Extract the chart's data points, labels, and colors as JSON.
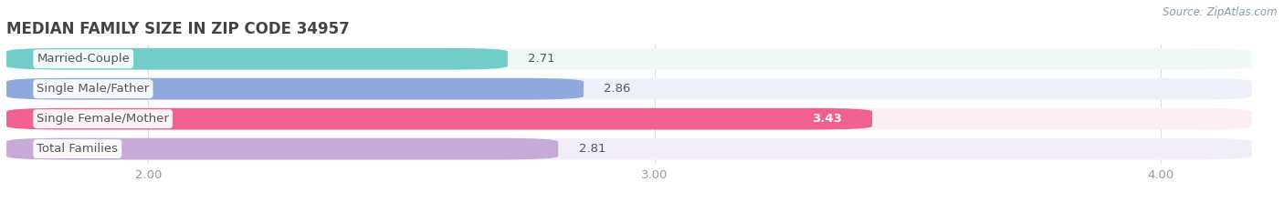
{
  "title": "MEDIAN FAMILY SIZE IN ZIP CODE 34957",
  "source": "Source: ZipAtlas.com",
  "categories": [
    "Married-Couple",
    "Single Male/Father",
    "Single Female/Mother",
    "Total Families"
  ],
  "values": [
    2.71,
    2.86,
    3.43,
    2.81
  ],
  "bar_colors": [
    "#72cdc9",
    "#90aade",
    "#f06090",
    "#c8aad8"
  ],
  "bar_bg_colors": [
    "#eff8f7",
    "#edf0f9",
    "#fceef4",
    "#f2eef8"
  ],
  "row_bg_colors": [
    "#f5f5f5",
    "#f5f5f5",
    "#f5f5f5",
    "#f5f5f5"
  ],
  "xlim_min": 1.72,
  "xlim_max": 4.18,
  "xticks": [
    2.0,
    3.0,
    4.0
  ],
  "xtick_labels": [
    "2.00",
    "3.00",
    "4.00"
  ],
  "bar_height": 0.72,
  "label_fontsize": 9.5,
  "value_fontsize": 9.5,
  "title_fontsize": 12,
  "source_fontsize": 8.5,
  "bg_color": "#ffffff",
  "label_color": "#555555",
  "value_color": "#555555",
  "value_white_threshold": 1.5,
  "grid_color": "#dddddd",
  "tick_label_color": "#999999"
}
